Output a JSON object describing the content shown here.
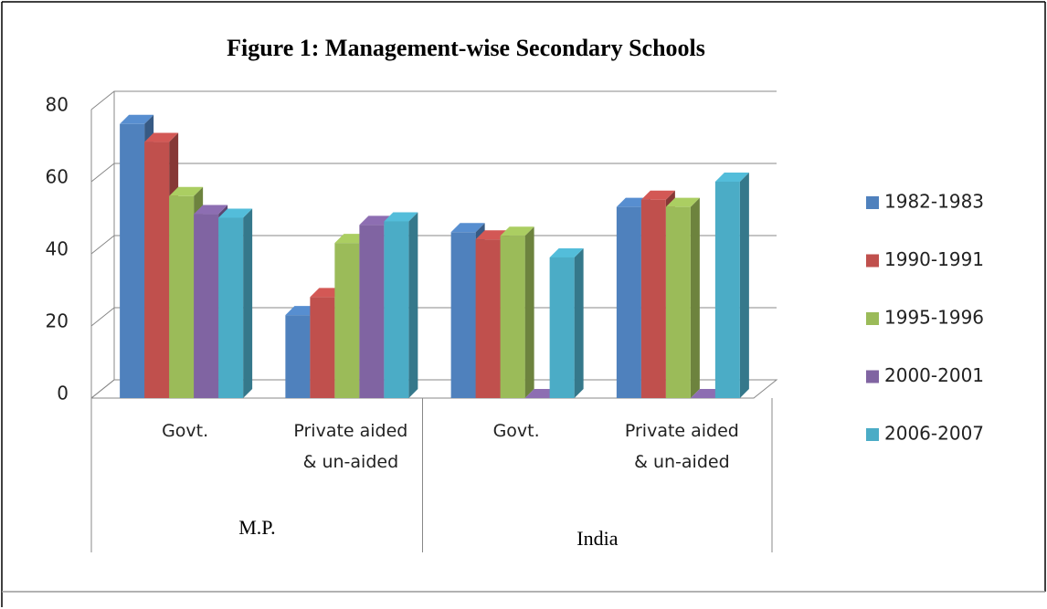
{
  "chart_data": {
    "type": "bar3d",
    "title": "Figure 1: Management-wise Secondary Schools",
    "categories": [
      "Govt.",
      "Private aided & un-aided",
      "Govt.",
      "Private aided & un-aided"
    ],
    "groups": [
      {
        "name": "M.P.",
        "size": 2
      },
      {
        "name": "India",
        "size": 2
      }
    ],
    "series": [
      {
        "name": "1982-1983",
        "color": "#4f81bd",
        "values": [
          76,
          23,
          46,
          53
        ]
      },
      {
        "name": "1990-1991",
        "color": "#c0504d",
        "values": [
          71,
          28,
          44,
          55
        ]
      },
      {
        "name": "1995-1996",
        "color": "#9bbb59",
        "values": [
          56,
          43,
          45,
          53
        ]
      },
      {
        "name": "2000-2001",
        "color": "#8064a2",
        "values": [
          51,
          48,
          0,
          0
        ]
      },
      {
        "name": "2006-2007",
        "color": "#4bacc6",
        "values": [
          50,
          49,
          39,
          60
        ]
      }
    ],
    "ylim": [
      0,
      80
    ],
    "yticks": [
      0,
      20,
      40,
      60,
      80
    ],
    "grid": true,
    "legend": "right"
  }
}
